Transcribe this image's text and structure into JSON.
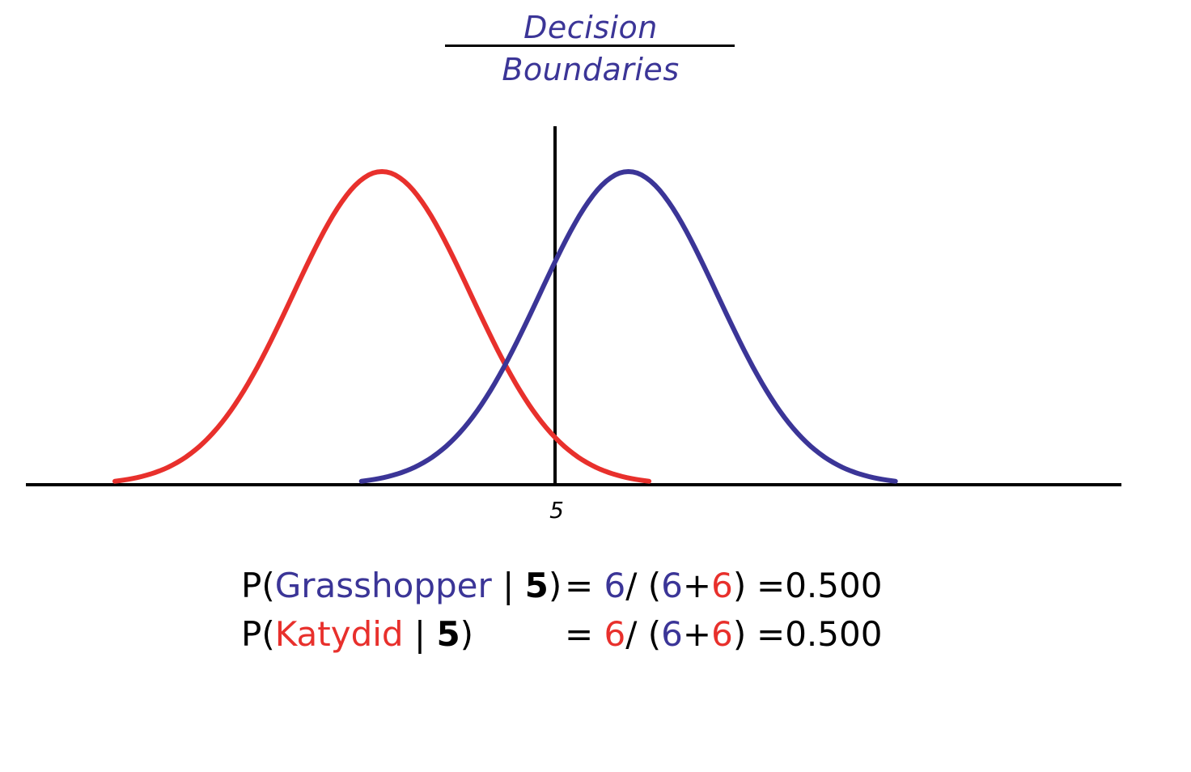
{
  "title": "Decision Boundaries",
  "colors": {
    "grasshopper": "#3b3597",
    "katydid": "#e8302c",
    "title": "#3b3597",
    "axis": "#000000"
  },
  "axis": {
    "tick_label": "5"
  },
  "curves": [
    {
      "class": "Katydid",
      "color_key": "katydid",
      "mean": 3.2,
      "sd": 1.3
    },
    {
      "class": "Grasshopper",
      "color_key": "grasshopper",
      "mean": 6.8,
      "sd": 1.3
    }
  ],
  "x_range": [
    -2.0,
    14.0
  ],
  "boundary_x": 5,
  "formulas": [
    {
      "prefix": "P(",
      "class_name": "Grasshopper",
      "sep": " | ",
      "given": "5",
      "close": ")",
      "eq": " = ",
      "num": "6",
      "slash": "/ (",
      "d1": "6",
      "plus": "+",
      "d2": "6",
      "close2": ")",
      "result": "=0.500",
      "num_color": "grasshopper",
      "name_color": "grasshopper"
    },
    {
      "prefix": "P(",
      "class_name": "Katydid",
      "sep": " | ",
      "given": "5",
      "close": ")",
      "eq": " = ",
      "num": "6",
      "slash": "/ (",
      "d1": "6",
      "plus": "+",
      "d2": "6",
      "close2": ")",
      "result": "=0.500",
      "num_color": "katydid",
      "name_color": "katydid"
    }
  ]
}
